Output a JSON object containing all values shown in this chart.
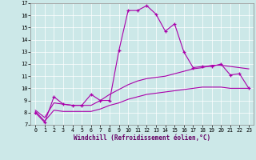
{
  "xlabel": "Windchill (Refroidissement éolien,°C)",
  "xlim": [
    -0.5,
    23.5
  ],
  "ylim": [
    7,
    17
  ],
  "yticks": [
    7,
    8,
    9,
    10,
    11,
    12,
    13,
    14,
    15,
    16,
    17
  ],
  "xticks": [
    0,
    1,
    2,
    3,
    4,
    5,
    6,
    7,
    8,
    9,
    10,
    11,
    12,
    13,
    14,
    15,
    16,
    17,
    18,
    19,
    20,
    21,
    22,
    23
  ],
  "bg_color": "#cce8e8",
  "line_color": "#aa00aa",
  "line1_x": [
    0,
    1,
    2,
    3,
    4,
    5,
    6,
    7,
    8,
    9,
    10,
    11,
    12,
    13,
    14,
    15,
    16,
    17,
    18,
    19,
    20,
    21,
    22,
    23
  ],
  "line1_y": [
    8.0,
    7.2,
    9.3,
    8.7,
    8.6,
    8.6,
    9.5,
    9.0,
    9.0,
    13.1,
    16.4,
    16.4,
    16.8,
    16.1,
    14.7,
    15.3,
    13.0,
    11.7,
    11.8,
    11.8,
    12.0,
    11.1,
    11.2,
    10.0
  ],
  "line2_x": [
    0,
    1,
    2,
    3,
    4,
    5,
    6,
    7,
    8,
    9,
    10,
    11,
    12,
    13,
    14,
    15,
    16,
    17,
    18,
    19,
    20,
    21,
    22,
    23
  ],
  "line2_y": [
    8.2,
    7.6,
    8.8,
    8.7,
    8.6,
    8.6,
    8.6,
    9.0,
    9.5,
    9.9,
    10.3,
    10.6,
    10.8,
    10.9,
    11.0,
    11.2,
    11.4,
    11.6,
    11.7,
    11.9,
    11.9,
    11.8,
    11.7,
    11.6
  ],
  "line3_x": [
    0,
    1,
    2,
    3,
    4,
    5,
    6,
    7,
    8,
    9,
    10,
    11,
    12,
    13,
    14,
    15,
    16,
    17,
    18,
    19,
    20,
    21,
    22,
    23
  ],
  "line3_y": [
    8.1,
    7.3,
    8.2,
    8.1,
    8.1,
    8.1,
    8.1,
    8.3,
    8.6,
    8.8,
    9.1,
    9.3,
    9.5,
    9.6,
    9.7,
    9.8,
    9.9,
    10.0,
    10.1,
    10.1,
    10.1,
    10.0,
    10.0,
    10.0
  ]
}
